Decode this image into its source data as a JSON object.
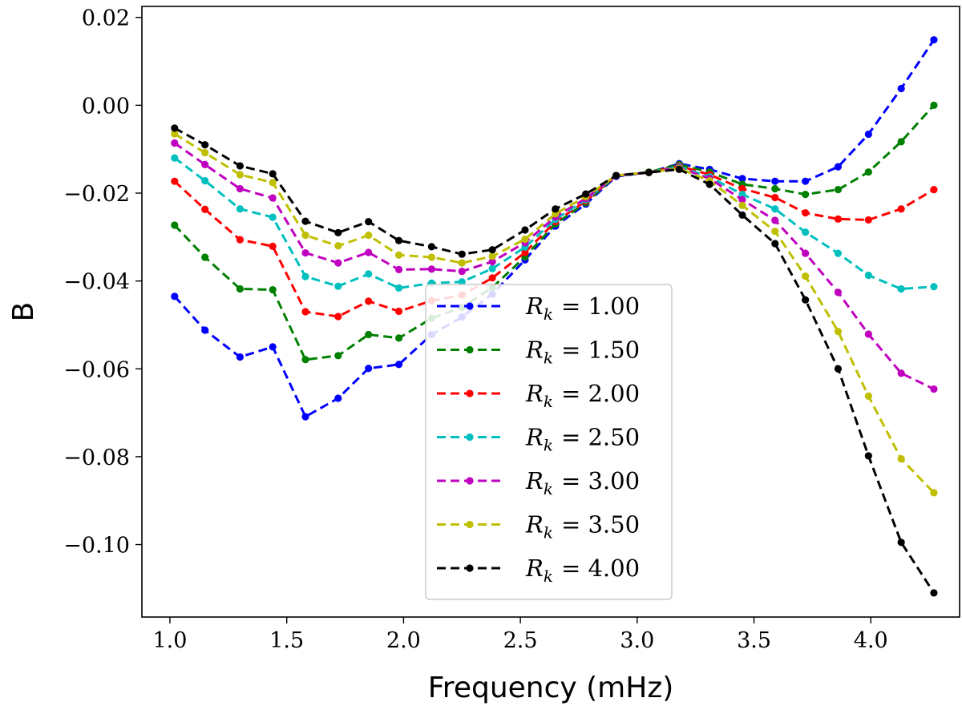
{
  "chart_data": {
    "type": "line",
    "title": "",
    "xlabel": "Frequency (mHz)",
    "ylabel": "B",
    "xlim": [
      0.88,
      4.38
    ],
    "ylim": [
      -0.1165,
      0.0225
    ],
    "x_ticks": [
      {
        "value": 1.0,
        "label": "1.0"
      },
      {
        "value": 1.5,
        "label": "1.5"
      },
      {
        "value": 2.0,
        "label": "2.0"
      },
      {
        "value": 2.5,
        "label": "2.5"
      },
      {
        "value": 3.0,
        "label": "3.0"
      },
      {
        "value": 3.5,
        "label": "3.5"
      },
      {
        "value": 4.0,
        "label": "4.0"
      }
    ],
    "y_ticks": [
      {
        "value": 0.02,
        "label": "0.02"
      },
      {
        "value": 0.0,
        "label": "0.00"
      },
      {
        "value": -0.02,
        "label": "−0.02"
      },
      {
        "value": -0.04,
        "label": "−0.04"
      },
      {
        "value": -0.06,
        "label": "−0.06"
      },
      {
        "value": -0.08,
        "label": "−0.08"
      },
      {
        "value": -0.1,
        "label": "−0.10"
      }
    ],
    "grid": false,
    "legend_position": "lower-center",
    "line_style": "dashed",
    "marker": "circle",
    "x": [
      1.02,
      1.15,
      1.3,
      1.44,
      1.58,
      1.72,
      1.85,
      1.98,
      2.12,
      2.25,
      2.38,
      2.52,
      2.65,
      2.78,
      2.91,
      3.05,
      3.18,
      3.31,
      3.45,
      3.59,
      3.72,
      3.86,
      3.99,
      4.13,
      4.27
    ],
    "series": [
      {
        "name": "R_k = 1.00",
        "legend_prefix": "R",
        "legend_sub": "k",
        "legend_value": "= 1.00",
        "color": "#0000ff",
        "values": [
          -0.0435,
          -0.0512,
          -0.0573,
          -0.055,
          -0.0709,
          -0.0667,
          -0.0599,
          -0.059,
          -0.0522,
          -0.0482,
          -0.043,
          -0.0352,
          -0.0275,
          -0.0225,
          -0.0162,
          -0.0153,
          -0.0133,
          -0.0146,
          -0.0167,
          -0.0173,
          -0.0173,
          -0.014,
          -0.0066,
          0.0038,
          0.0149
        ]
      },
      {
        "name": "R_k = 1.50",
        "legend_prefix": "R",
        "legend_sub": "k",
        "legend_value": "= 1.50",
        "color": "#008000",
        "values": [
          -0.0273,
          -0.0346,
          -0.0418,
          -0.042,
          -0.0579,
          -0.057,
          -0.0522,
          -0.053,
          -0.0485,
          -0.046,
          -0.0415,
          -0.0345,
          -0.027,
          -0.0222,
          -0.016,
          -0.0152,
          -0.0135,
          -0.0152,
          -0.018,
          -0.019,
          -0.0203,
          -0.0192,
          -0.0152,
          -0.0083,
          0.0
        ]
      },
      {
        "name": "R_k = 2.00",
        "legend_prefix": "R",
        "legend_sub": "k",
        "legend_value": "= 2.00",
        "color": "#ff0000",
        "values": [
          -0.0173,
          -0.0237,
          -0.0306,
          -0.0321,
          -0.047,
          -0.0481,
          -0.0446,
          -0.0469,
          -0.0445,
          -0.0432,
          -0.0393,
          -0.0335,
          -0.0265,
          -0.0218,
          -0.016,
          -0.0153,
          -0.0138,
          -0.0158,
          -0.019,
          -0.021,
          -0.0245,
          -0.0259,
          -0.0261,
          -0.0236,
          -0.0192
        ]
      },
      {
        "name": "R_k = 2.50",
        "legend_prefix": "R",
        "legend_sub": "k",
        "legend_value": "= 2.50",
        "color": "#00bfbf",
        "values": [
          -0.012,
          -0.0172,
          -0.0236,
          -0.0255,
          -0.039,
          -0.0412,
          -0.0384,
          -0.0416,
          -0.0405,
          -0.0402,
          -0.0372,
          -0.0323,
          -0.026,
          -0.0215,
          -0.016,
          -0.0153,
          -0.014,
          -0.0163,
          -0.0203,
          -0.0236,
          -0.0289,
          -0.0337,
          -0.0387,
          -0.0418,
          -0.0413
        ]
      },
      {
        "name": "R_k = 3.00",
        "legend_prefix": "R",
        "legend_sub": "k",
        "legend_value": "= 3.00",
        "color": "#bf00bf",
        "values": [
          -0.0086,
          -0.0135,
          -0.019,
          -0.0211,
          -0.0336,
          -0.0359,
          -0.0335,
          -0.0374,
          -0.0373,
          -0.0378,
          -0.0356,
          -0.0313,
          -0.0254,
          -0.0212,
          -0.016,
          -0.0153,
          -0.0142,
          -0.0167,
          -0.0215,
          -0.0262,
          -0.0337,
          -0.0426,
          -0.0521,
          -0.061,
          -0.0646
        ]
      },
      {
        "name": "R_k = 3.50",
        "legend_prefix": "R",
        "legend_sub": "k",
        "legend_value": "= 3.50",
        "color": "#bfbf00",
        "values": [
          -0.0065,
          -0.0108,
          -0.0158,
          -0.0176,
          -0.0296,
          -0.032,
          -0.0296,
          -0.0341,
          -0.0346,
          -0.0359,
          -0.0344,
          -0.0305,
          -0.0247,
          -0.0208,
          -0.016,
          -0.0153,
          -0.0144,
          -0.0172,
          -0.0228,
          -0.0287,
          -0.0389,
          -0.0515,
          -0.0662,
          -0.0805,
          -0.0882
        ]
      },
      {
        "name": "R_k = 4.00",
        "legend_prefix": "R",
        "legend_sub": "k",
        "legend_value": "= 4.00",
        "color": "#000000",
        "values": [
          -0.0052,
          -0.009,
          -0.0138,
          -0.0156,
          -0.0264,
          -0.029,
          -0.0265,
          -0.0308,
          -0.0322,
          -0.0339,
          -0.0329,
          -0.0284,
          -0.0236,
          -0.0202,
          -0.016,
          -0.0153,
          -0.0146,
          -0.018,
          -0.025,
          -0.0315,
          -0.0443,
          -0.06,
          -0.0798,
          -0.0995,
          -0.111
        ]
      }
    ]
  }
}
